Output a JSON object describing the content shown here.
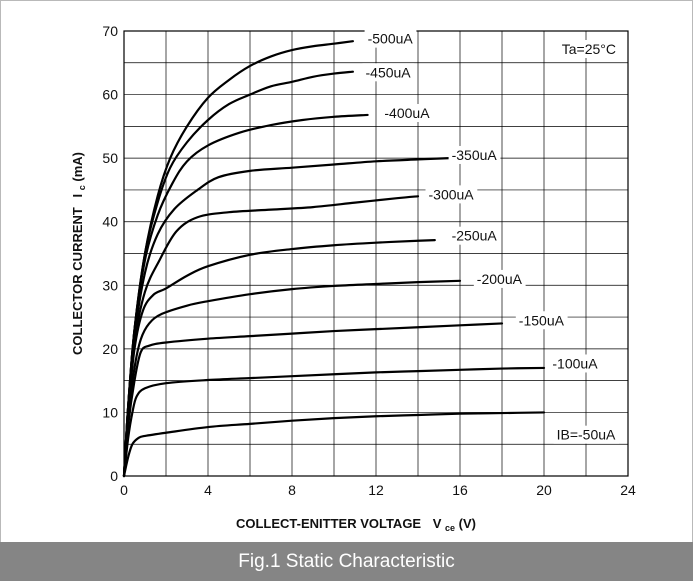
{
  "caption": "Fig.1 Static Characteristic",
  "chart_data": {
    "type": "line",
    "title": "",
    "xlabel": "COLLECT-ENITTER VOLTAGE",
    "xlabel_symbol": "V",
    "xlabel_sub": "ce",
    "xlabel_unit": "(V)",
    "ylabel": "COLLECTOR CURRENT",
    "ylabel_symbol": "I",
    "ylabel_sub": "c",
    "ylabel_unit": "(mA)",
    "xlim": [
      0,
      24
    ],
    "ylim": [
      0,
      70
    ],
    "x_ticks": [
      0,
      4,
      8,
      12,
      16,
      20,
      24
    ],
    "y_ticks": [
      0,
      10,
      20,
      30,
      40,
      50,
      60,
      70
    ],
    "grid": true,
    "grid_x_step": 2,
    "grid_y_step": 5,
    "annotation": "Ta=25°C",
    "line_color": "#000000",
    "series": [
      {
        "name": "IB=-50uA",
        "label_at": [
          20.6,
          6.5
        ],
        "points": [
          [
            0,
            0
          ],
          [
            0.2,
            3
          ],
          [
            0.4,
            5
          ],
          [
            0.7,
            6
          ],
          [
            1,
            6.3
          ],
          [
            2,
            6.8
          ],
          [
            4,
            7.7
          ],
          [
            6,
            8.2
          ],
          [
            8,
            8.7
          ],
          [
            10,
            9.1
          ],
          [
            12,
            9.4
          ],
          [
            14,
            9.6
          ],
          [
            16,
            9.8
          ],
          [
            18,
            9.9
          ],
          [
            20,
            10
          ]
        ]
      },
      {
        "name": "-100uA",
        "label_at": [
          20.4,
          17.7
        ],
        "points": [
          [
            0,
            0
          ],
          [
            0.2,
            6
          ],
          [
            0.4,
            10
          ],
          [
            0.6,
            12.5
          ],
          [
            1,
            13.8
          ],
          [
            2,
            14.6
          ],
          [
            4,
            15.1
          ],
          [
            6,
            15.4
          ],
          [
            8,
            15.7
          ],
          [
            10,
            16
          ],
          [
            12,
            16.3
          ],
          [
            14,
            16.5
          ],
          [
            16,
            16.7
          ],
          [
            18,
            16.9
          ],
          [
            20,
            17
          ]
        ]
      },
      {
        "name": "-150uA",
        "label_at": [
          18.8,
          24.5
        ],
        "points": [
          [
            0,
            0
          ],
          [
            0.2,
            8
          ],
          [
            0.5,
            15
          ],
          [
            0.8,
            19.5
          ],
          [
            1.2,
            20.5
          ],
          [
            2,
            21
          ],
          [
            4,
            21.6
          ],
          [
            6,
            22
          ],
          [
            8,
            22.4
          ],
          [
            10,
            22.8
          ],
          [
            12,
            23.1
          ],
          [
            14,
            23.4
          ],
          [
            16,
            23.7
          ],
          [
            18,
            24
          ]
        ]
      },
      {
        "name": "-200uA",
        "label_at": [
          16.8,
          31
        ],
        "points": [
          [
            0,
            0
          ],
          [
            0.2,
            9
          ],
          [
            0.5,
            17
          ],
          [
            0.8,
            21.5
          ],
          [
            1.2,
            24
          ],
          [
            1.8,
            25.5
          ],
          [
            3,
            26.8
          ],
          [
            4,
            27.5
          ],
          [
            6,
            28.6
          ],
          [
            8,
            29.4
          ],
          [
            10,
            29.9
          ],
          [
            12,
            30.2
          ],
          [
            14,
            30.5
          ],
          [
            16,
            30.7
          ]
        ]
      },
      {
        "name": "-250uA",
        "label_at": [
          15.6,
          37.8
        ],
        "points": [
          [
            0,
            0
          ],
          [
            0.2,
            10
          ],
          [
            0.5,
            20
          ],
          [
            0.9,
            26
          ],
          [
            1.4,
            28.5
          ],
          [
            2,
            29.5
          ],
          [
            3,
            31.5
          ],
          [
            4,
            33
          ],
          [
            6,
            34.8
          ],
          [
            8,
            35.7
          ],
          [
            10,
            36.3
          ],
          [
            12,
            36.7
          ],
          [
            14,
            37
          ],
          [
            14.8,
            37.1
          ]
        ]
      },
      {
        "name": "-300uA",
        "label_at": [
          14.5,
          44.3
        ],
        "points": [
          [
            0,
            0
          ],
          [
            0.2,
            10
          ],
          [
            0.5,
            21
          ],
          [
            1,
            29
          ],
          [
            1.7,
            34
          ],
          [
            2.5,
            38.5
          ],
          [
            3.5,
            40.7
          ],
          [
            5,
            41.5
          ],
          [
            7,
            41.9
          ],
          [
            9,
            42.3
          ],
          [
            11,
            43
          ],
          [
            13,
            43.7
          ],
          [
            14,
            44
          ]
        ]
      },
      {
        "name": "-350uA",
        "label_at": [
          15.6,
          50.5
        ],
        "points": [
          [
            0,
            0
          ],
          [
            0.2,
            11
          ],
          [
            0.5,
            22
          ],
          [
            1,
            32
          ],
          [
            1.6,
            38
          ],
          [
            2.4,
            42
          ],
          [
            3.5,
            45
          ],
          [
            4.5,
            47
          ],
          [
            6,
            48
          ],
          [
            8,
            48.5
          ],
          [
            10,
            49
          ],
          [
            12,
            49.5
          ],
          [
            14,
            49.8
          ],
          [
            15.5,
            50
          ]
        ]
      },
      {
        "name": "-400uA",
        "label_at": [
          12.4,
          57.1
        ],
        "points": [
          [
            0,
            0
          ],
          [
            0.2,
            11
          ],
          [
            0.5,
            23
          ],
          [
            1,
            34
          ],
          [
            1.6,
            41
          ],
          [
            2.3,
            46
          ],
          [
            3,
            49.5
          ],
          [
            4,
            52
          ],
          [
            5.5,
            54
          ],
          [
            7,
            55.2
          ],
          [
            8.5,
            56
          ],
          [
            10,
            56.5
          ],
          [
            11.6,
            56.8
          ]
        ]
      },
      {
        "name": "-450uA",
        "label_at": [
          11.5,
          63.5
        ],
        "points": [
          [
            0,
            0
          ],
          [
            0.2,
            11
          ],
          [
            0.5,
            23
          ],
          [
            1,
            35
          ],
          [
            1.6,
            43
          ],
          [
            2.2,
            48.5
          ],
          [
            3,
            52.5
          ],
          [
            4,
            56
          ],
          [
            5,
            58.5
          ],
          [
            6,
            60
          ],
          [
            7,
            61.3
          ],
          [
            8,
            62
          ],
          [
            9,
            62.8
          ],
          [
            10,
            63.3
          ],
          [
            10.9,
            63.6
          ]
        ]
      },
      {
        "name": "-500uA",
        "label_at": [
          11.6,
          68.8
        ],
        "points": [
          [
            0,
            0
          ],
          [
            0.2,
            11
          ],
          [
            0.5,
            23
          ],
          [
            1,
            35
          ],
          [
            1.6,
            44
          ],
          [
            2.2,
            50
          ],
          [
            3,
            55
          ],
          [
            4,
            59.5
          ],
          [
            5,
            62.3
          ],
          [
            6,
            64.5
          ],
          [
            7,
            66
          ],
          [
            8,
            67
          ],
          [
            9,
            67.6
          ],
          [
            10,
            68
          ],
          [
            10.9,
            68.4
          ]
        ]
      }
    ]
  }
}
